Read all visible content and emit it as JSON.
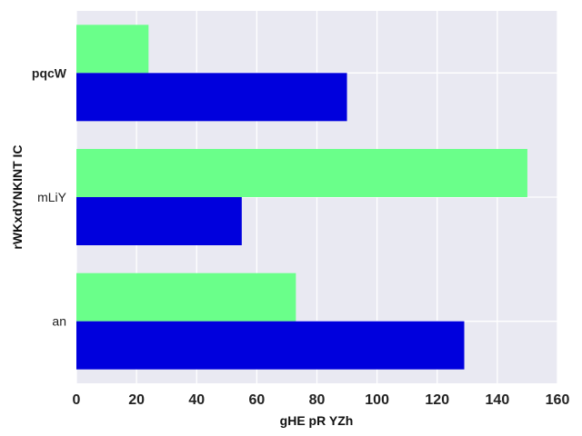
{
  "chart_data": {
    "type": "bar",
    "orientation": "horizontal",
    "xlabel": "gHE pR YZh",
    "ylabel": "rWKxdYNKINT IC",
    "categories": [
      "pqcW",
      "mLiY",
      "an"
    ],
    "category_bold": [
      true,
      false,
      false
    ],
    "series": [
      {
        "values": [
          24,
          150,
          73
        ],
        "color": "#6aff8a"
      },
      {
        "values": [
          90,
          55,
          129
        ],
        "color": "#0000dd"
      }
    ],
    "xlim": [
      0,
      160
    ],
    "xticks": [
      0,
      20,
      40,
      60,
      80,
      100,
      120,
      140,
      160
    ],
    "grid": true,
    "legend": "none",
    "background": "#e9e9f2"
  }
}
